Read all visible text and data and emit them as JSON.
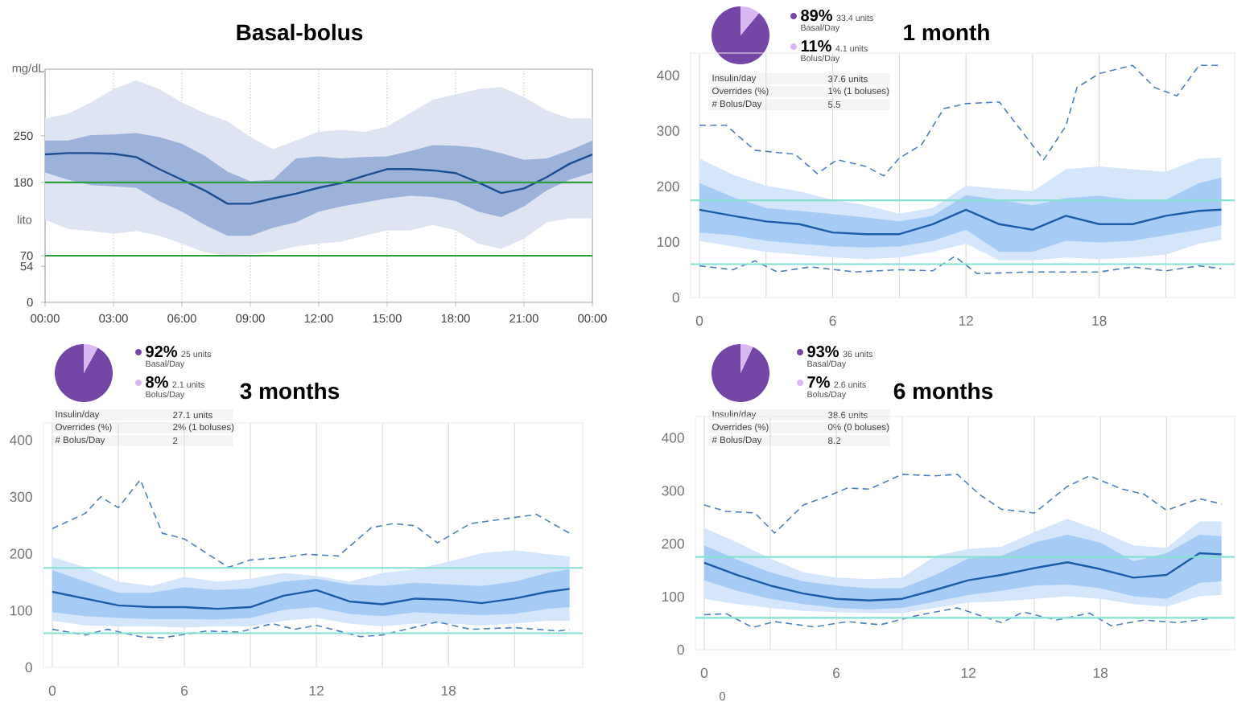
{
  "chart_data": [
    {
      "type": "line",
      "title": "Basal-bolus",
      "ylabel": "mg/dL",
      "annotations": [
        "lito"
      ],
      "x": [
        0,
        1,
        2,
        3,
        4,
        5,
        6,
        7,
        8,
        9,
        10,
        11,
        12,
        13,
        14,
        15,
        16,
        17,
        18,
        19,
        20,
        21,
        22,
        23,
        24
      ],
      "series": [
        {
          "color": "#dfe4f2",
          "values": [
            null,
            null,
            null,
            null,
            null,
            null,
            null,
            null,
            null,
            null,
            null,
            null,
            null,
            null,
            null,
            null,
            null,
            null,
            null,
            null,
            null,
            null,
            null,
            null,
            null
          ],
          "lower": [
            124,
            110,
            107,
            103,
            107,
            100,
            88,
            75,
            70,
            72,
            76,
            84,
            88,
            91,
            100,
            108,
            108,
            116,
            108,
            88,
            80,
            96,
            120,
            126,
            126
          ],
          "upper": [
            276,
            283,
            300,
            320,
            333,
            320,
            300,
            284,
            272,
            248,
            230,
            243,
            256,
            259,
            256,
            264,
            284,
            304,
            312,
            320,
            323,
            308,
            288,
            276,
            276
          ]
        },
        {
          "color": "#9db2d9",
          "values": [
            null,
            null,
            null,
            null,
            null,
            null,
            null,
            null,
            null,
            null,
            null,
            null,
            null,
            null,
            null,
            null,
            null,
            null,
            null,
            null,
            null,
            null,
            null,
            null,
            null
          ],
          "lower": [
            195,
            184,
            176,
            174,
            172,
            152,
            136,
            116,
            100,
            100,
            112,
            120,
            136,
            144,
            150,
            156,
            160,
            158,
            152,
            136,
            128,
            144,
            168,
            184,
            195
          ],
          "upper": [
            243,
            243,
            251,
            252,
            254,
            248,
            238,
            220,
            196,
            182,
            184,
            216,
            219,
            216,
            218,
            219,
            227,
            236,
            235,
            232,
            224,
            214,
            216,
            228,
            243
          ]
        },
        {
          "color": "#1c4f91",
          "values": [
            222,
            224,
            224,
            223,
            218,
            200,
            184,
            168,
            148,
            148,
            156,
            163,
            172,
            179,
            190,
            200,
            200,
            198,
            194,
            180,
            164,
            171,
            188,
            208,
            222
          ]
        }
      ],
      "xlim": [
        0,
        24
      ],
      "ylim": [
        0,
        350
      ],
      "xticks": [
        {
          "value": 0,
          "label": "00:00"
        },
        {
          "value": 3,
          "label": "03:00"
        },
        {
          "value": 6,
          "label": "06:00"
        },
        {
          "value": 9,
          "label": "09:00"
        },
        {
          "value": 12,
          "label": "12:00"
        },
        {
          "value": 15,
          "label": "15:00"
        },
        {
          "value": 18,
          "label": "18:00"
        },
        {
          "value": 21,
          "label": "21:00"
        },
        {
          "value": 24,
          "label": "00:00"
        }
      ],
      "yticks": [
        0,
        54,
        70,
        180,
        250
      ],
      "ref_lines": [
        {
          "axis": "y",
          "value": 180,
          "color": "#2e9e3e"
        },
        {
          "axis": "y",
          "value": 70,
          "color": "#2e9e3e"
        }
      ],
      "grid": "x"
    },
    {
      "type": "pie",
      "categories": [
        "Basal/Day",
        "Bolus/Day"
      ],
      "values": [
        89,
        11
      ],
      "colors": [
        "#7446a6",
        "#d9b8f2"
      ],
      "value_labels": [
        "89%",
        "11%"
      ],
      "annotations": [
        "33.4 units",
        "4.1 units"
      ],
      "legend": "right"
    },
    {
      "type": "other",
      "annotations": [
        "Insulin/day",
        "37.6 units",
        "Overrides (%)",
        "1% (1 boluses)",
        "# Bolus/Day",
        "5.5"
      ]
    },
    {
      "type": "line",
      "title": "1 month",
      "x": [
        0,
        1.5,
        3,
        4.5,
        6,
        7.5,
        9,
        10.5,
        12,
        13.5,
        15,
        16.5,
        18,
        19.5,
        21,
        22.5,
        23.5
      ],
      "series": [
        {
          "color": "#d5e6fb",
          "values": [
            null,
            null,
            null,
            null,
            null,
            null,
            null,
            null,
            null,
            null,
            null,
            null,
            null,
            null,
            null,
            null,
            null
          ],
          "lower": [
            102,
            92,
            82,
            77,
            72,
            69,
            72,
            82,
            97,
            67,
            67,
            72,
            69,
            72,
            77,
            97,
            104
          ],
          "upper": [
            250,
            221,
            201,
            191,
            176,
            166,
            151,
            161,
            201,
            196,
            191,
            231,
            236,
            231,
            226,
            250,
            252
          ]
        },
        {
          "color": "#a6ccf5",
          "values": [
            null,
            null,
            null,
            null,
            null,
            null,
            null,
            null,
            null,
            null,
            null,
            null,
            null,
            null,
            null,
            null,
            null
          ],
          "lower": [
            117,
            112,
            102,
            97,
            92,
            90,
            92,
            102,
            122,
            82,
            82,
            102,
            99,
            102,
            112,
            122,
            130
          ],
          "upper": [
            206,
            181,
            161,
            156,
            150,
            144,
            137,
            147,
            184,
            176,
            166,
            179,
            183,
            176,
            176,
            206,
            216
          ]
        },
        {
          "color": "#1d5ca8",
          "values": [
            158,
            147,
            137,
            132,
            117,
            114,
            114,
            132,
            158,
            132,
            122,
            147,
            132,
            132,
            147,
            156,
            158
          ]
        },
        {
          "color": "#4d80c0",
          "line_style": "dashed",
          "x": [
            0,
            1.2,
            2.5,
            4.3,
            5.3,
            6.2,
            7.5,
            8.3,
            9,
            10,
            11,
            12,
            13.5,
            14.5,
            15.5,
            16.5,
            17,
            18,
            19.5,
            20.5,
            21.5,
            22.5,
            23.5
          ],
          "values": [
            310,
            310,
            265,
            258,
            223,
            248,
            236,
            219,
            251,
            275,
            340,
            349,
            352,
            300,
            248,
            309,
            378,
            403,
            418,
            378,
            363,
            418,
            418
          ]
        },
        {
          "color": "#4d80c0",
          "line_style": "dashed",
          "x": [
            0,
            1.5,
            2.5,
            3.5,
            5,
            7,
            9,
            10.5,
            11.5,
            12.5,
            15,
            18,
            19.5,
            21,
            22.5,
            23.5
          ],
          "values": [
            57,
            50,
            66,
            46,
            55,
            46,
            50,
            48,
            74,
            43,
            46,
            46,
            55,
            48,
            57,
            52
          ]
        }
      ],
      "xlim": [
        -0.4,
        24.1
      ],
      "ylim": [
        0,
        440
      ],
      "xticks": [
        0,
        {
          "value": 3,
          "label": null
        },
        6,
        {
          "value": 9,
          "label": null
        },
        12,
        {
          "value": 15,
          "label": null
        },
        18,
        {
          "value": 21,
          "label": null
        }
      ],
      "yticks": [
        0,
        100,
        200,
        300,
        400
      ],
      "ref_lines": [
        {
          "axis": "y",
          "value": 175,
          "color": "#86e0d2"
        },
        {
          "axis": "y",
          "value": 60,
          "color": "#86e0d2"
        }
      ],
      "grid": "x"
    },
    {
      "type": "pie",
      "categories": [
        "Basal/Day",
        "Bolus/Day"
      ],
      "values": [
        92,
        8
      ],
      "colors": [
        "#7446a6",
        "#d9b8f2"
      ],
      "value_labels": [
        "92%",
        "8%"
      ],
      "annotations": [
        "25 units",
        "2.1 units"
      ],
      "legend": "right"
    },
    {
      "type": "other",
      "annotations": [
        "Insulin/day",
        "27.1 units",
        "Overrides (%)",
        "2% (1 boluses)",
        "# Bolus/Day",
        "2"
      ]
    },
    {
      "type": "line",
      "title": "3 months",
      "x": [
        0,
        1.5,
        3,
        4.5,
        6,
        7.5,
        9,
        10.5,
        12,
        13.5,
        15,
        16.5,
        18,
        19.5,
        21,
        22.5,
        23.5
      ],
      "series": [
        {
          "color": "#d5e6fb",
          "values": [
            null,
            null,
            null,
            null,
            null,
            null,
            null,
            null,
            null,
            null,
            null,
            null,
            null,
            null,
            null,
            null,
            null
          ],
          "lower": [
            82,
            74,
            72,
            72,
            70,
            72,
            72,
            82,
            87,
            77,
            72,
            77,
            77,
            74,
            77,
            82,
            82
          ],
          "upper": [
            194,
            176,
            151,
            143,
            159,
            151,
            156,
            166,
            161,
            151,
            166,
            173,
            186,
            201,
            206,
            199,
            195
          ]
        },
        {
          "color": "#a6ccf5",
          "values": [
            null,
            null,
            null,
            null,
            null,
            null,
            null,
            null,
            null,
            null,
            null,
            null,
            null,
            null,
            null,
            null,
            null
          ],
          "lower": [
            97,
            90,
            87,
            85,
            85,
            84,
            87,
            101,
            106,
            94,
            90,
            97,
            94,
            92,
            94,
            103,
            106
          ],
          "upper": [
            171,
            151,
            131,
            131,
            141,
            136,
            139,
            151,
            156,
            146,
            143,
            149,
            146,
            143,
            151,
            166,
            173
          ]
        },
        {
          "color": "#1d5ca8",
          "values": [
            133,
            121,
            109,
            106,
            106,
            103,
            106,
            126,
            136,
            116,
            111,
            121,
            119,
            113,
            121,
            133,
            138
          ]
        },
        {
          "color": "#4d80c0",
          "line_style": "dashed",
          "x": [
            0,
            1.5,
            2.2,
            3,
            4,
            5,
            6,
            7,
            8,
            9,
            10.5,
            11.5,
            13,
            14.5,
            15.5,
            16.5,
            17.5,
            19,
            20.5,
            22,
            23.5
          ],
          "values": [
            244,
            271,
            300,
            281,
            330,
            236,
            226,
            201,
            176,
            189,
            193,
            199,
            196,
            246,
            253,
            249,
            219,
            253,
            261,
            269,
            236
          ]
        },
        {
          "color": "#4d80c0",
          "line_style": "dashed",
          "x": [
            0,
            1.5,
            2.5,
            4,
            5,
            7,
            8.5,
            10,
            11,
            12,
            14,
            15,
            17.5,
            19,
            21,
            23,
            23.5
          ],
          "values": [
            67,
            57,
            67,
            54,
            52,
            64,
            62,
            77,
            67,
            74,
            54,
            57,
            80,
            67,
            70,
            64,
            67
          ]
        }
      ],
      "xlim": [
        -0.4,
        24.1
      ],
      "ylim": [
        0,
        430
      ],
      "xticks": [
        0,
        {
          "value": 3,
          "label": null
        },
        6,
        {
          "value": 9,
          "label": null
        },
        12,
        {
          "value": 15,
          "label": null
        },
        18,
        {
          "value": 21,
          "label": null
        }
      ],
      "yticks": [
        0,
        100,
        200,
        300,
        400
      ],
      "ref_lines": [
        {
          "axis": "y",
          "value": 175,
          "color": "#86e0d2"
        },
        {
          "axis": "y",
          "value": 60,
          "color": "#86e0d2"
        }
      ],
      "grid": "x"
    },
    {
      "type": "pie",
      "categories": [
        "Basal/Day",
        "Bolus/Day"
      ],
      "values": [
        93,
        7
      ],
      "colors": [
        "#7446a6",
        "#d9b8f2"
      ],
      "value_labels": [
        "93%",
        "7%"
      ],
      "annotations": [
        "36 units",
        "2.6 units"
      ],
      "legend": "right"
    },
    {
      "type": "other",
      "annotations": [
        "Insulin/day",
        "38.6 units",
        "Overrides (%)",
        "0% (0 boluses)",
        "# Bolus/Day",
        "8.2"
      ]
    },
    {
      "type": "line",
      "title": "6 months",
      "annotations": [
        "0"
      ],
      "x": [
        0,
        1.5,
        3,
        4.5,
        6,
        7.5,
        9,
        10.5,
        12,
        13.5,
        15,
        16.5,
        18,
        19.5,
        21,
        22.5,
        23.5
      ],
      "series": [
        {
          "color": "#d5e6fb",
          "values": [
            null,
            null,
            null,
            null,
            null,
            null,
            null,
            null,
            null,
            null,
            null,
            null,
            null,
            null,
            null,
            null,
            null
          ],
          "lower": [
            96,
            86,
            79,
            73,
            71,
            69,
            69,
            79,
            89,
            91,
            96,
            101,
            96,
            86,
            81,
            101,
            103
          ],
          "upper": [
            230,
            202,
            172,
            146,
            136,
            133,
            136,
            177,
            190,
            194,
            222,
            247,
            224,
            197,
            192,
            242,
            242
          ]
        },
        {
          "color": "#a6ccf5",
          "values": [
            null,
            null,
            null,
            null,
            null,
            null,
            null,
            null,
            null,
            null,
            null,
            null,
            null,
            null,
            null,
            null,
            null
          ],
          "lower": [
            131,
            111,
            96,
            86,
            79,
            76,
            79,
            91,
            103,
            111,
            121,
            123,
            116,
            101,
            96,
            126,
            129
          ],
          "upper": [
            197,
            170,
            146,
            129,
            121,
            116,
            116,
            141,
            172,
            177,
            202,
            217,
            202,
            167,
            182,
            217,
            214
          ]
        },
        {
          "color": "#1d5ca8",
          "values": [
            164,
            141,
            121,
            106,
            96,
            93,
            96,
            113,
            131,
            141,
            154,
            165,
            152,
            136,
            141,
            182,
            180
          ]
        },
        {
          "color": "#4d80c0",
          "line_style": "dashed",
          "x": [
            0,
            1,
            2.3,
            3.2,
            4.5,
            5.5,
            6.5,
            7.5,
            9,
            10.5,
            11.5,
            12.5,
            13.5,
            15,
            16.5,
            17.5,
            19,
            20,
            21,
            22.5,
            23.5
          ],
          "values": [
            273,
            261,
            258,
            220,
            273,
            288,
            305,
            303,
            331,
            328,
            331,
            293,
            265,
            258,
            308,
            328,
            303,
            293,
            263,
            285,
            275
          ]
        },
        {
          "color": "#4d80c0",
          "line_style": "dashed",
          "x": [
            0,
            1,
            2.2,
            3.2,
            5,
            6.5,
            8,
            9.5,
            11.5,
            13.5,
            14.5,
            16,
            17.5,
            18.5,
            20,
            21.5,
            23
          ],
          "values": [
            66,
            68,
            42,
            53,
            43,
            53,
            47,
            63,
            79,
            51,
            71,
            56,
            69,
            45,
            56,
            51,
            59
          ]
        }
      ],
      "xlim": [
        -0.4,
        24.1
      ],
      "ylim": [
        0,
        440
      ],
      "xticks": [
        0,
        {
          "value": 3,
          "label": null
        },
        6,
        {
          "value": 9,
          "label": null
        },
        12,
        {
          "value": 15,
          "label": null
        },
        18,
        {
          "value": 21,
          "label": null
        }
      ],
      "yticks": [
        0,
        100,
        200,
        300,
        400
      ],
      "ref_lines": [
        {
          "axis": "y",
          "value": 175,
          "color": "#86e0d2"
        },
        {
          "axis": "y",
          "value": 60,
          "color": "#86e0d2"
        }
      ],
      "grid": "x"
    }
  ]
}
